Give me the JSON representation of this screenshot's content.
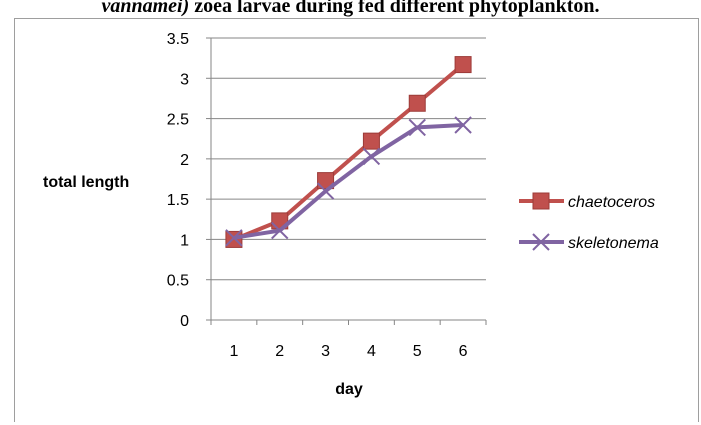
{
  "caption": {
    "italic_part": "vannamei)",
    "rest": " zoea larvae during fed different phytoplankton."
  },
  "chart_data": {
    "type": "line",
    "x": [
      1,
      2,
      3,
      4,
      5,
      6
    ],
    "xlabel": "day",
    "ylabel": "total length",
    "ylim": [
      0,
      3.5
    ],
    "ytick_step": 0.5,
    "ytick_labels": [
      "0",
      "0.5",
      "1",
      "1.5",
      "2",
      "2.5",
      "3",
      "3.5"
    ],
    "xtick_labels": [
      "1",
      "2",
      "3",
      "4",
      "5",
      "6"
    ],
    "grid": "horizontal",
    "legend_position": "right",
    "series": [
      {
        "name": "chaetoceros",
        "values": [
          1.0,
          1.23,
          1.73,
          2.22,
          2.69,
          3.17
        ],
        "color": "#c0504d",
        "marker": "square"
      },
      {
        "name": "skeletonema",
        "values": [
          1.02,
          1.11,
          1.6,
          2.03,
          2.39,
          2.42
        ],
        "color": "#8064a2",
        "marker": "x"
      }
    ]
  }
}
